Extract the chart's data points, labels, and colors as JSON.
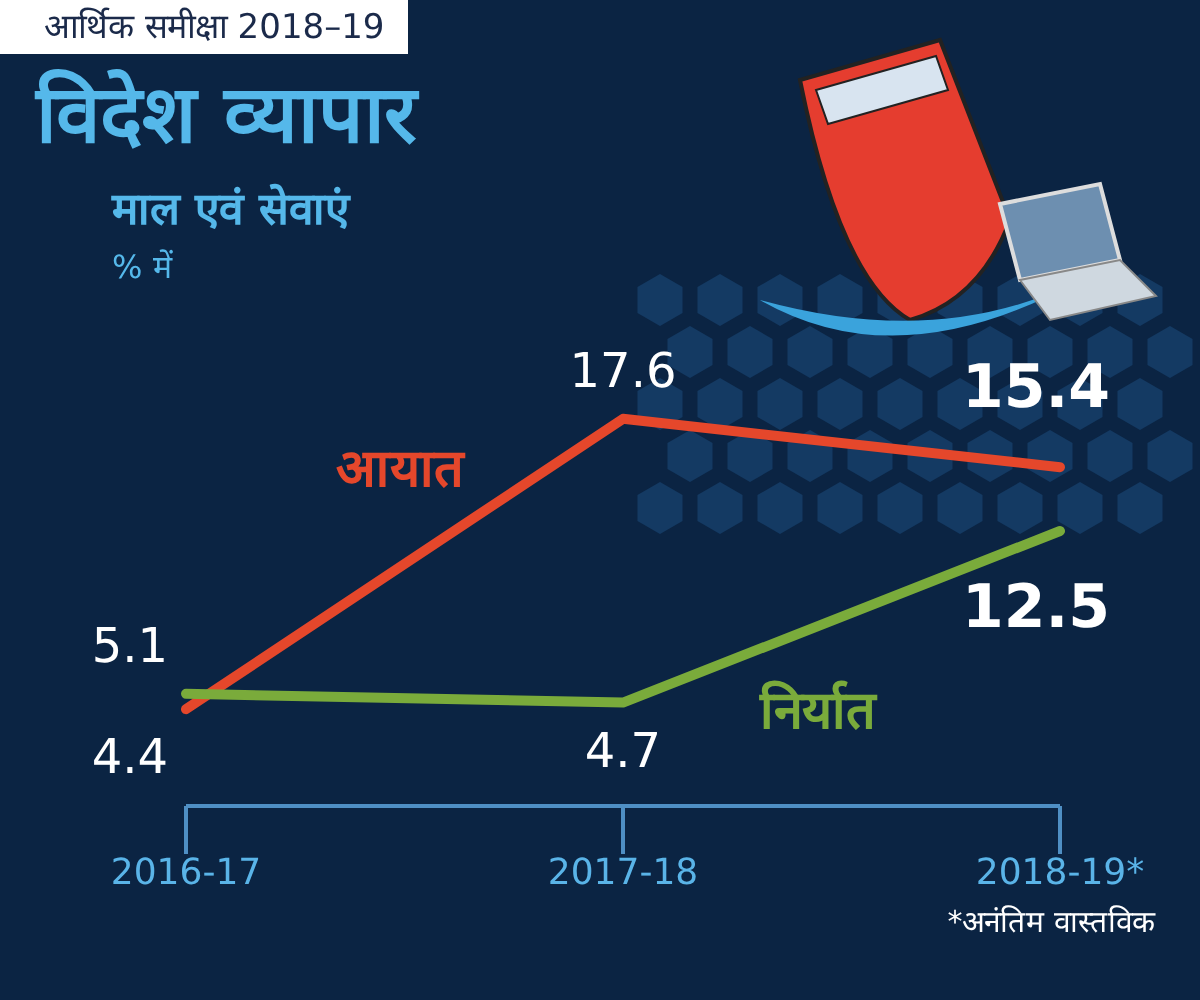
{
  "chart_data": {
    "type": "line",
    "title": "विदेश व्यापार",
    "subtitle": "माल एवं सेवाएं",
    "ylabel": "% में",
    "annotations": [
      "आर्थिक समीक्षा 2018–19",
      "*अनंतिम वास्तविक"
    ],
    "categories": [
      "2016-17",
      "2017-18",
      "2018-19*"
    ],
    "series": [
      {
        "name": "आयात",
        "color": "#e5472b",
        "values": [
          4.4,
          17.6,
          15.4
        ]
      },
      {
        "name": "निर्यात",
        "color": "#7aab3b",
        "values": [
          5.1,
          4.7,
          12.5
        ]
      }
    ],
    "data_labels": true,
    "legend": false,
    "grid": false,
    "marker": "none",
    "line_style": "solid"
  }
}
